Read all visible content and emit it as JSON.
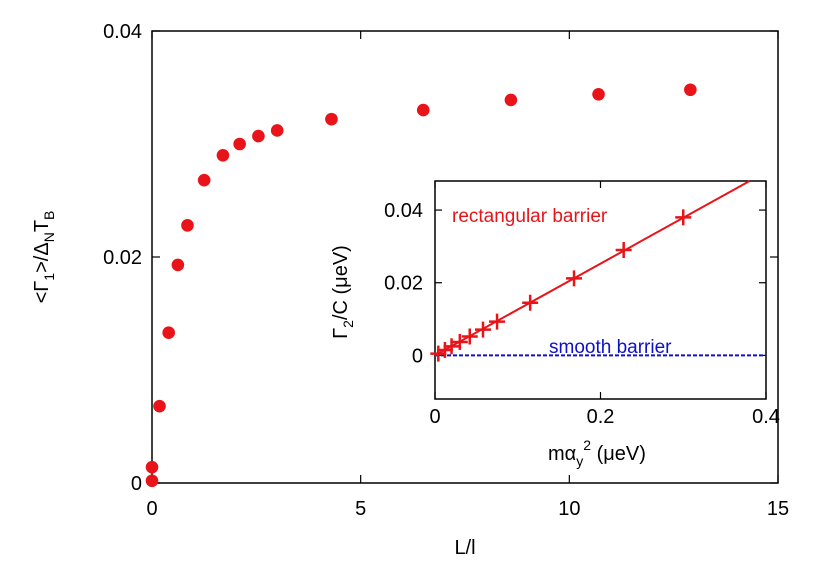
{
  "chart_data": [
    {
      "type": "scatter",
      "name": "main",
      "xlabel": "L/l",
      "ylabel": "<Γ₁>/Δ_N T_B",
      "ylabel_parts": {
        "open": "<Γ",
        "sub1": "1",
        "mid": ">/Δ",
        "sub2": "N",
        "T": "T",
        "sub3": "B"
      },
      "xlim": [
        0,
        15
      ],
      "ylim": [
        0,
        0.04
      ],
      "xticks": [
        0,
        5,
        10,
        15
      ],
      "xtick_labels": [
        "0",
        "5",
        "10",
        "15"
      ],
      "yticks": [
        0,
        0.02,
        0.04
      ],
      "ytick_labels": [
        "0",
        "0.02",
        "0.04"
      ],
      "color": "#e8141a",
      "series": [
        {
          "name": "data",
          "points": [
            [
              0.0,
              0.0002
            ],
            [
              0.0,
              0.0014
            ],
            [
              0.18,
              0.0068
            ],
            [
              0.4,
              0.0133
            ],
            [
              0.62,
              0.0193
            ],
            [
              0.85,
              0.0228
            ],
            [
              1.25,
              0.0268
            ],
            [
              1.7,
              0.029
            ],
            [
              2.1,
              0.03
            ],
            [
              2.55,
              0.0307
            ],
            [
              3.0,
              0.0312
            ],
            [
              4.3,
              0.0322
            ],
            [
              6.5,
              0.033
            ],
            [
              8.6,
              0.0339
            ],
            [
              10.7,
              0.0344
            ],
            [
              12.9,
              0.0348
            ]
          ]
        }
      ]
    },
    {
      "type": "line",
      "name": "inset",
      "xlabel": "mα_y² (μeV)",
      "xlabel_parts": {
        "m": "mα",
        "sub": "y",
        "sup": "2",
        "unit": " (μeV)"
      },
      "ylabel": "Γ₂/C (μeV)",
      "ylabel_parts": {
        "G": "Γ",
        "sub": "2",
        "rest": "/C (μeV)"
      },
      "xlim": [
        0,
        0.4
      ],
      "ylim": [
        -0.012,
        0.048
      ],
      "xticks": [
        0,
        0.2,
        0.4
      ],
      "xtick_labels": [
        "0",
        "0.2",
        "0.4"
      ],
      "yticks": [
        0,
        0.02,
        0.04
      ],
      "ytick_labels": [
        "0",
        "0.02",
        "0.04"
      ],
      "series": [
        {
          "name": "rectangular barrier",
          "color": "#e8141a",
          "marker": "plus",
          "points": [
            [
              0.004,
              0.0005
            ],
            [
              0.012,
              0.0015
            ],
            [
              0.02,
              0.0025
            ],
            [
              0.03,
              0.0037
            ],
            [
              0.042,
              0.0052
            ],
            [
              0.058,
              0.0071
            ],
            [
              0.075,
              0.0093
            ],
            [
              0.115,
              0.0145
            ],
            [
              0.168,
              0.0212
            ],
            [
              0.228,
              0.029
            ],
            [
              0.3,
              0.038
            ]
          ],
          "fit_line": [
            [
              0,
              0
            ],
            [
              0.4,
              0.0505
            ]
          ]
        },
        {
          "name": "smooth barrier",
          "color": "#1010cc",
          "style": "dashed",
          "line": [
            [
              0,
              0
            ],
            [
              0.4,
              0
            ]
          ]
        }
      ],
      "annotations": [
        "rectangular barrier",
        "smooth barrier"
      ]
    }
  ]
}
